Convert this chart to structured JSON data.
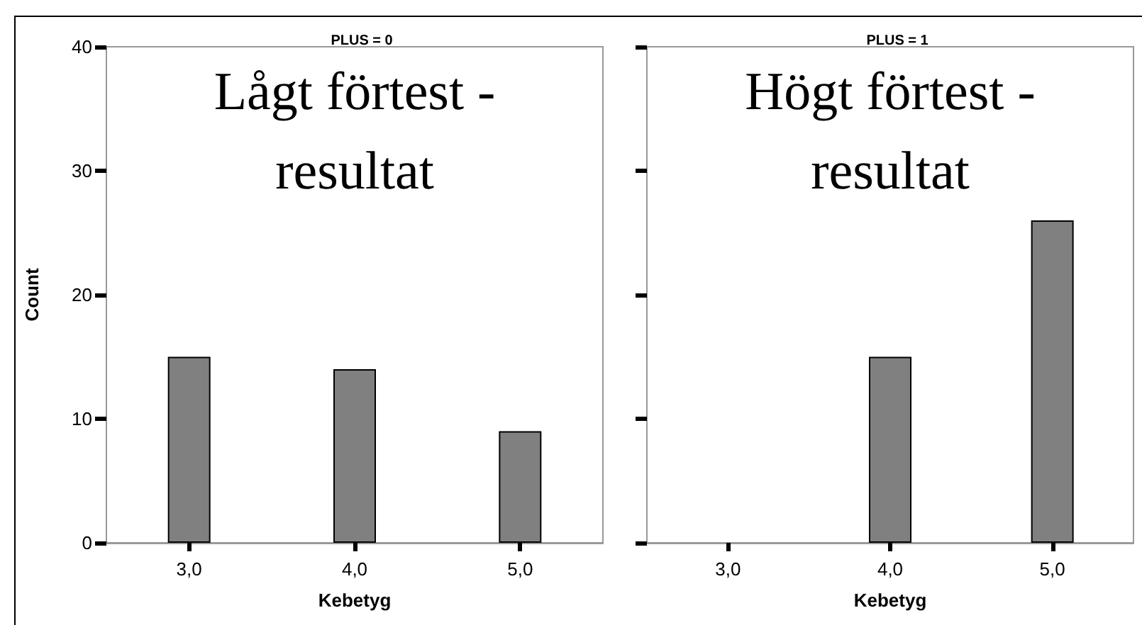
{
  "chart_data": [
    {
      "type": "bar",
      "title": "PLUS = 0",
      "xlabel": "Kebetyg",
      "ylabel": "Count",
      "annotations": [
        "Lågt förtest -\nresultat"
      ],
      "categories": [
        "3,0",
        "4,0",
        "5,0"
      ],
      "values": [
        15,
        14,
        9
      ],
      "color": "#808080",
      "ylim": [
        0,
        40
      ],
      "yticks": [
        0,
        10,
        20,
        30,
        40
      ],
      "grid": false
    },
    {
      "type": "bar",
      "title": "PLUS = 1",
      "xlabel": "Kebetyg",
      "annotations": [
        "Högt förtest -\nresultat"
      ],
      "categories": [
        "3,0",
        "4,0",
        "5,0"
      ],
      "values": [
        0,
        15,
        26
      ],
      "color": "#808080",
      "ylim": [
        0,
        40
      ],
      "yticks": [
        0,
        10,
        20,
        30,
        40
      ],
      "grid": false,
      "tick_labels": "x"
    }
  ]
}
